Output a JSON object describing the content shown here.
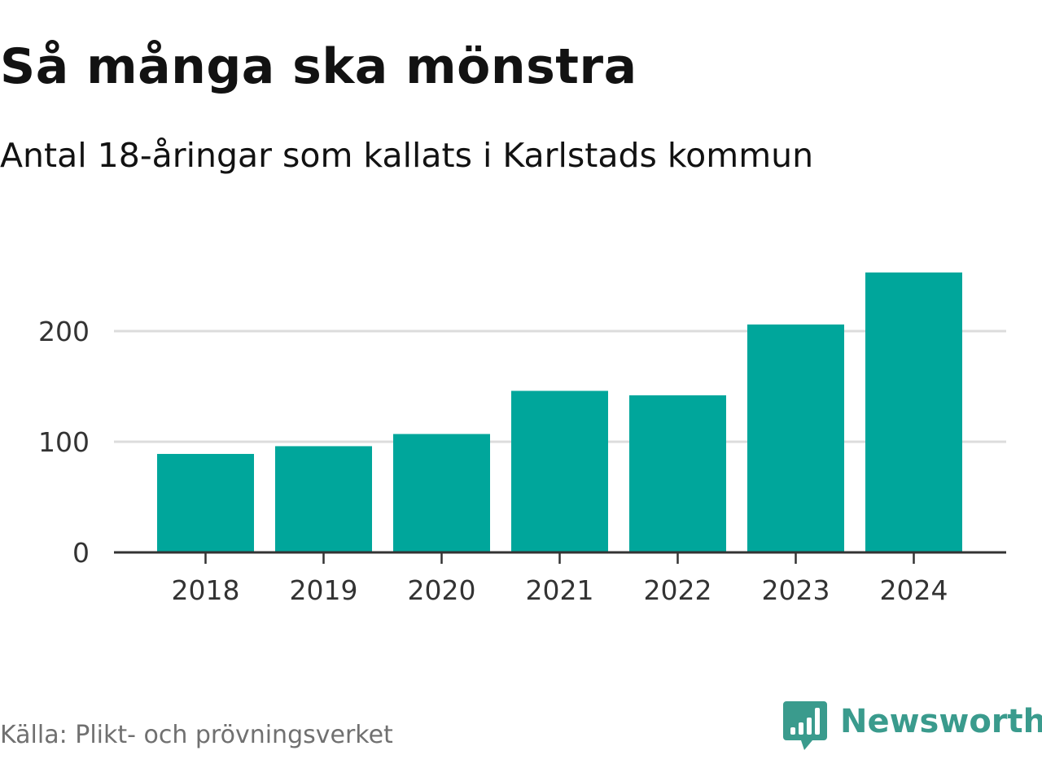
{
  "chart_data": {
    "type": "bar",
    "title": "Så många ska mönstra",
    "subtitle": "Antal 18-åringar som kallats i Karlstads kommun",
    "categories": [
      "2018",
      "2019",
      "2020",
      "2021",
      "2022",
      "2023",
      "2024"
    ],
    "values": [
      89,
      96,
      107,
      146,
      142,
      206,
      253
    ],
    "xlabel": "",
    "ylabel": "",
    "ylim": [
      0,
      253
    ],
    "yticks": [
      0,
      100,
      200
    ],
    "grid": true,
    "bar_color": "#00a69b",
    "gridline_color": "#dcdcdc",
    "axis_color": "#333333"
  },
  "source": "Källa: Plikt- och prövningsverket",
  "brand": {
    "name": "Newsworthy",
    "color": "#3a9b8d"
  }
}
